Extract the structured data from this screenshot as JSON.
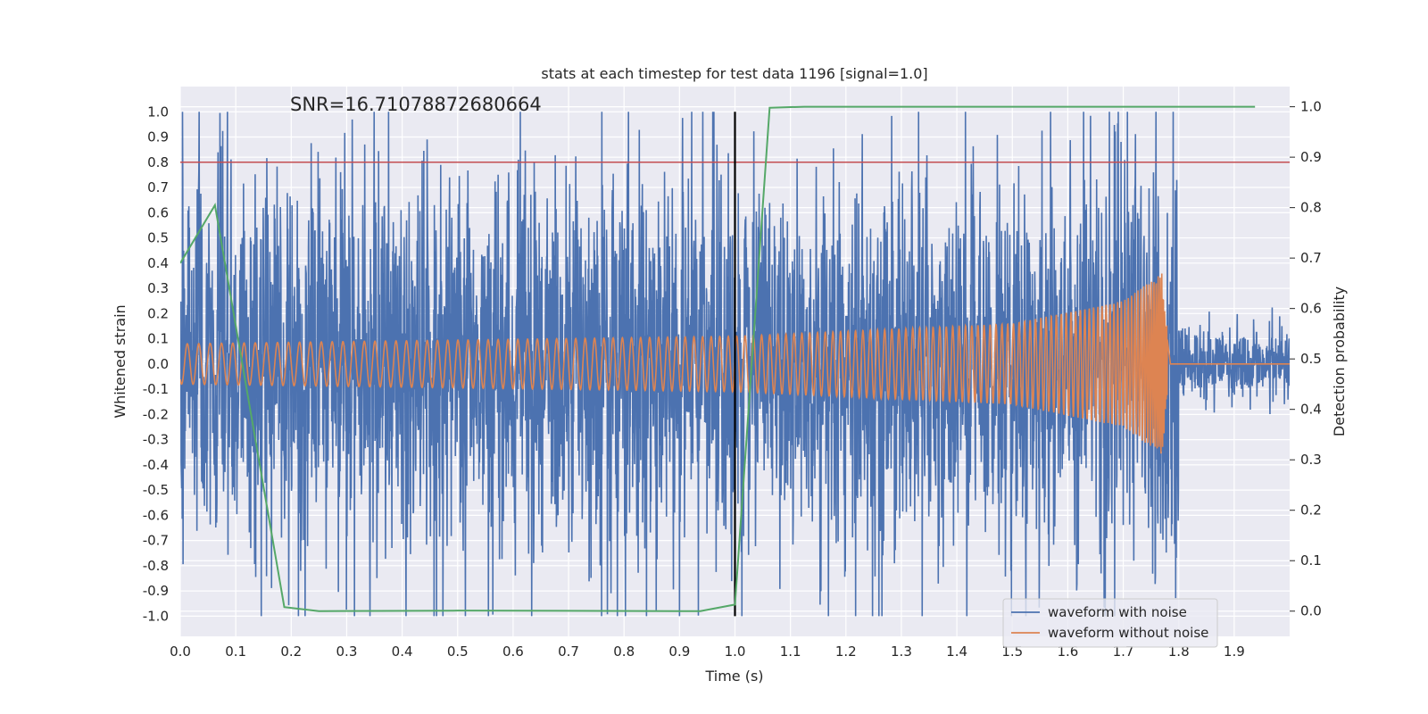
{
  "chart_data": {
    "type": "line",
    "title": "stats at each timestep for test data 1196 [signal=1.0]",
    "annotation": "SNR=16.71078872680664",
    "xlabel": "Time (s)",
    "ylabel": "Whitened strain",
    "y2label": "Detection probability",
    "xlim": [
      0,
      2.0
    ],
    "ylim": [
      -1.08,
      1.1
    ],
    "y2lim": [
      -0.05,
      1.04
    ],
    "x_ticks": [
      "0.0",
      "0.1",
      "0.2",
      "0.3",
      "0.4",
      "0.5",
      "0.6",
      "0.7",
      "0.8",
      "0.9",
      "1.0",
      "1.1",
      "1.2",
      "1.3",
      "1.4",
      "1.5",
      "1.6",
      "1.7",
      "1.8",
      "1.9"
    ],
    "y_ticks": [
      "-1.0",
      "-0.9",
      "-0.8",
      "-0.7",
      "-0.6",
      "-0.5",
      "-0.4",
      "-0.3",
      "-0.2",
      "-0.1",
      "0.0",
      "0.1",
      "0.2",
      "0.3",
      "0.4",
      "0.5",
      "0.6",
      "0.7",
      "0.8",
      "0.9",
      "1.0"
    ],
    "y2_ticks": [
      "0.0",
      "0.1",
      "0.2",
      "0.3",
      "0.4",
      "0.5",
      "0.6",
      "0.7",
      "0.8",
      "0.9",
      "1.0"
    ],
    "grid": true,
    "legend": {
      "placement": "lower-right",
      "entries": [
        {
          "label": "waveform with noise",
          "color": "#4c72b0"
        },
        {
          "label": "waveform without noise",
          "color": "#dd8452"
        }
      ]
    },
    "series": [
      {
        "name": "waveform with noise",
        "axis": "left",
        "color": "#4c72b0",
        "noise_amplitude_before_merger": 0.35,
        "noise_amplitude_after_merger": 0.07,
        "peak_value": 1.0,
        "x_range": [
          0,
          2.0
        ]
      },
      {
        "name": "waveform without noise",
        "axis": "left",
        "color": "#dd8452",
        "description_points": [
          {
            "x": 0.0,
            "amplitude": 0.08
          },
          {
            "x": 1.0,
            "amplitude": 0.11
          },
          {
            "x": 1.5,
            "amplitude": 0.16
          },
          {
            "x": 1.7,
            "amplitude": 0.25
          },
          {
            "x": 1.77,
            "amplitude": 0.36
          },
          {
            "x": 1.785,
            "amplitude": 0.0
          },
          {
            "x": 2.0,
            "amplitude": 0.0
          }
        ],
        "merger_time": 1.78
      },
      {
        "axis": "right",
        "color": "#55a868",
        "x": [
          0.0,
          0.0625,
          0.1875,
          0.25,
          0.5,
          0.9375,
          1.0,
          1.0625,
          1.125,
          1.9375
        ],
        "y": [
          0.69,
          0.805,
          0.008,
          0.0,
          0.001,
          0.0,
          0.013,
          0.998,
          1.0,
          1.0
        ]
      }
    ],
    "reference_lines": [
      {
        "orientation": "horizontal",
        "axis": "left",
        "y": 0.8,
        "color": "#c44e52"
      },
      {
        "orientation": "vertical",
        "x": 1.0,
        "y_range": [
          -1.0,
          1.0
        ],
        "color": "#000000"
      }
    ]
  }
}
